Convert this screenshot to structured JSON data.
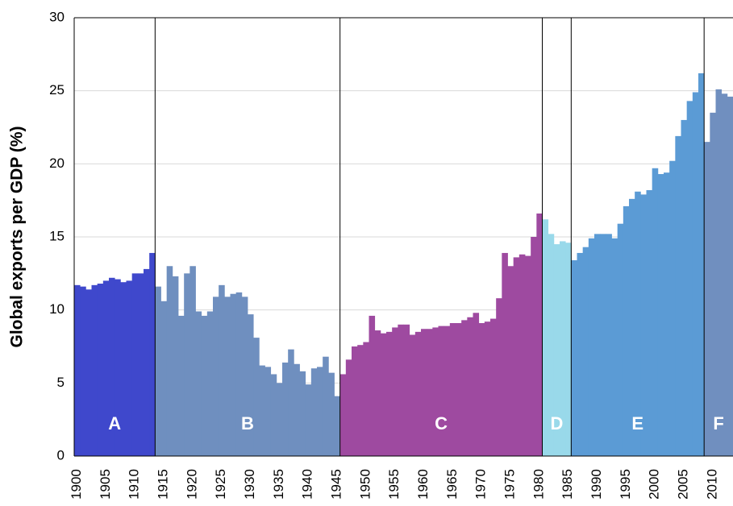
{
  "chart_data": {
    "type": "bar",
    "y_label": "Global exports per GDP (%)",
    "xlim": [
      1899.5,
      2013.5
    ],
    "xticks": [
      1900,
      1905,
      1910,
      1915,
      1920,
      1925,
      1930,
      1935,
      1940,
      1945,
      1950,
      1955,
      1960,
      1965,
      1970,
      1975,
      1980,
      1985,
      1990,
      1995,
      2000,
      2005,
      2010
    ],
    "ylim": [
      0,
      30
    ],
    "yticks": [
      0,
      5,
      10,
      15,
      20,
      25,
      30
    ],
    "grid": true,
    "series": [
      {
        "name": "A",
        "color": "#3f48cc",
        "x": [
          1900,
          1901,
          1902,
          1903,
          1904,
          1905,
          1906,
          1907,
          1908,
          1909,
          1910,
          1911,
          1912,
          1913
        ],
        "values": [
          11.7,
          11.6,
          11.4,
          11.7,
          11.8,
          12.0,
          12.2,
          12.1,
          11.9,
          12.0,
          12.5,
          12.5,
          12.8,
          13.9
        ]
      },
      {
        "name": "B",
        "color": "#6f8fbf",
        "x": [
          1914,
          1915,
          1916,
          1917,
          1918,
          1919,
          1920,
          1921,
          1922,
          1923,
          1924,
          1925,
          1926,
          1927,
          1928,
          1929,
          1930,
          1931,
          1932,
          1933,
          1934,
          1935,
          1936,
          1937,
          1938,
          1939,
          1940,
          1941,
          1942,
          1943,
          1944,
          1945
        ],
        "values": [
          11.6,
          10.6,
          13.0,
          12.3,
          9.6,
          12.5,
          13.0,
          9.9,
          9.6,
          9.9,
          10.9,
          11.7,
          10.9,
          11.1,
          11.2,
          10.9,
          9.7,
          8.1,
          6.2,
          6.1,
          5.6,
          5.0,
          6.4,
          7.3,
          6.3,
          5.8,
          4.9,
          6.0,
          6.1,
          6.8,
          5.7,
          4.1
        ]
      },
      {
        "name": "C",
        "color": "#9e4aa0",
        "x": [
          1946,
          1947,
          1948,
          1949,
          1950,
          1951,
          1952,
          1953,
          1954,
          1955,
          1956,
          1957,
          1958,
          1959,
          1960,
          1961,
          1962,
          1963,
          1964,
          1965,
          1966,
          1967,
          1968,
          1969,
          1970,
          1971,
          1972,
          1973,
          1974,
          1975,
          1976,
          1977,
          1978,
          1979,
          1980
        ],
        "values": [
          5.6,
          6.6,
          7.5,
          7.6,
          7.8,
          9.6,
          8.6,
          8.4,
          8.5,
          8.8,
          9.0,
          9.0,
          8.3,
          8.5,
          8.7,
          8.7,
          8.8,
          8.9,
          8.9,
          9.1,
          9.1,
          9.3,
          9.5,
          9.8,
          9.1,
          9.2,
          9.4,
          10.8,
          13.9,
          13.0,
          13.6,
          13.8,
          13.7,
          15.0,
          16.6
        ]
      },
      {
        "name": "D",
        "color": "#99d9ea",
        "x": [
          1981,
          1982,
          1983,
          1984,
          1985
        ],
        "values": [
          16.2,
          15.2,
          14.5,
          14.7,
          14.6
        ]
      },
      {
        "name": "E",
        "color": "#5b9bd5",
        "x": [
          1986,
          1987,
          1988,
          1989,
          1990,
          1991,
          1992,
          1993,
          1994,
          1995,
          1996,
          1997,
          1998,
          1999,
          2000,
          2001,
          2002,
          2003,
          2004,
          2005,
          2006,
          2007,
          2008
        ],
        "values": [
          13.4,
          13.9,
          14.3,
          14.9,
          15.2,
          15.2,
          15.2,
          14.9,
          15.9,
          17.1,
          17.6,
          18.1,
          17.9,
          18.2,
          19.7,
          19.3,
          19.4,
          20.2,
          21.9,
          23.0,
          24.3,
          24.9,
          26.2
        ]
      },
      {
        "name": "F",
        "color": "#708fbf",
        "x": [
          2009,
          2010,
          2011,
          2012,
          2013
        ],
        "values": [
          21.5,
          23.5,
          25.1,
          24.8,
          24.6
        ]
      }
    ]
  }
}
